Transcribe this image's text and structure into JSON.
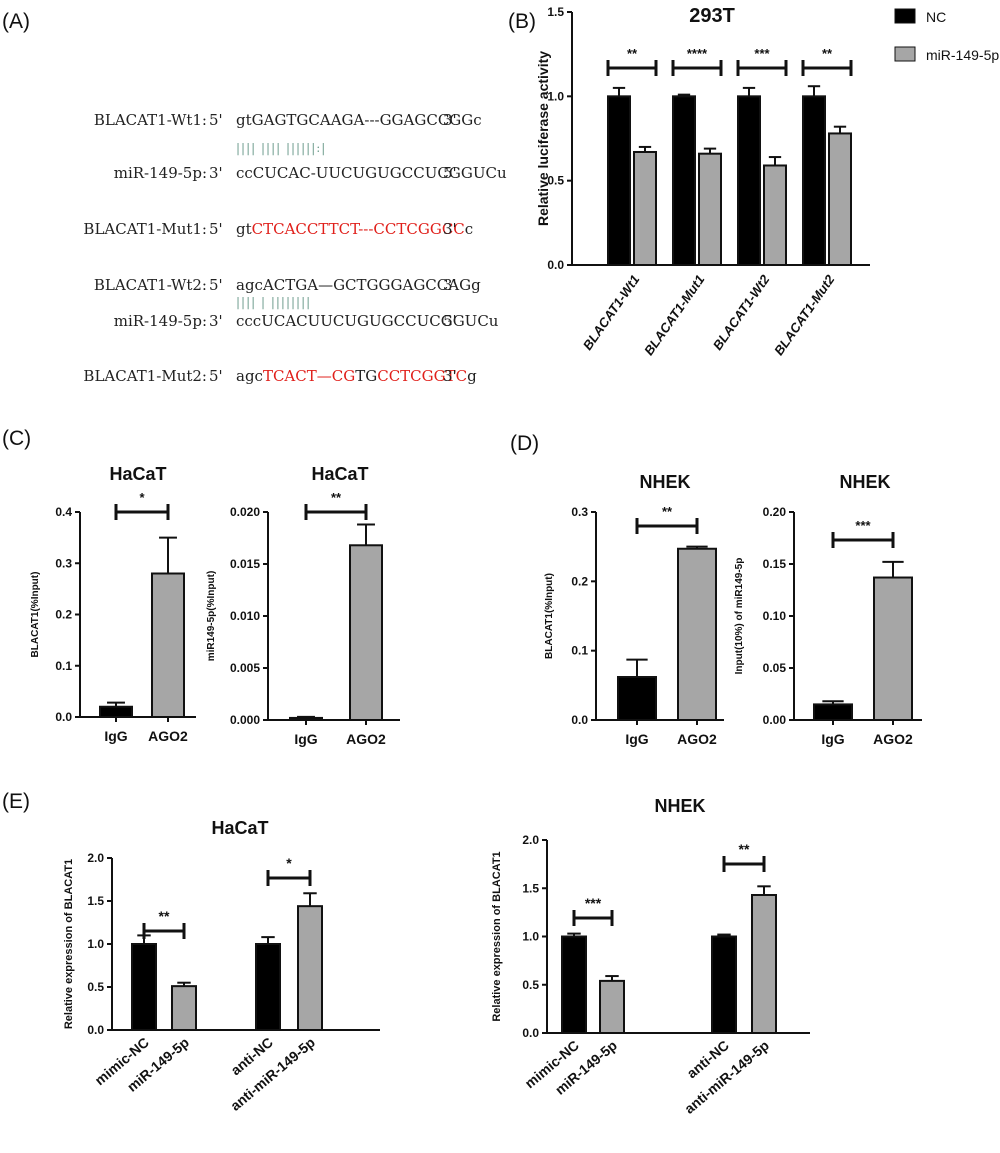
{
  "panel_labels": {
    "A": "(A)",
    "B": "(B)",
    "C": "(C)",
    "D": "(D)",
    "E": "(E)"
  },
  "sequences": [
    {
      "name": "BLACAT1-Wt1:",
      "p5": "5'",
      "segments": [
        {
          "t": "gtGAGTGCAAGA---GGAGCCGGc",
          "c": "#222222"
        }
      ],
      "p3": "3'"
    },
    {
      "name": "",
      "pairing": "|||| ||||  ||||||:|"
    },
    {
      "name": "miR-149-5p:",
      "p5": "3'",
      "segments": [
        {
          "t": "ccCUCAC-UUCUGUGCCUCGGUCu",
          "c": "#222222"
        }
      ],
      "p3": "5'"
    },
    {
      "name": "BLACAT1-Mut1:",
      "p5": "5'",
      "segments": [
        {
          "t": "gt",
          "c": "#222222"
        },
        {
          "t": "CTCACCTTCT---CCTCGGCC",
          "c": "#e0201b"
        },
        {
          "t": "c",
          "c": "#222222"
        }
      ],
      "p3": "3'"
    },
    {
      "name": "BLACAT1-Wt2:",
      "p5": "5'",
      "segments": [
        {
          "t": "agcACTGA—GCTGGGAGCCAGg",
          "c": "#222222"
        }
      ],
      "p3": "3'"
    },
    {
      "name": "",
      "pairing": "||||  |  ||||||||"
    },
    {
      "name": "miR-149-5p:",
      "p5": "3'",
      "segments": [
        {
          "t": "cccUCACUUCUGUGCCUCGGUCu",
          "c": "#222222"
        }
      ],
      "p3": "5'"
    },
    {
      "name": "BLACAT1-Mut2:",
      "p5": "5'",
      "segments": [
        {
          "t": "agc",
          "c": "#222222"
        },
        {
          "t": "TCACT—CG",
          "c": "#e0201b"
        },
        {
          "t": "TG",
          "c": "#222222"
        },
        {
          "t": "CCTCGGTC",
          "c": "#e0201b"
        },
        {
          "t": "g",
          "c": "#222222"
        }
      ],
      "p3": "3'"
    }
  ],
  "colors": {
    "nc": "#000000",
    "treat": "#a6a6a6",
    "mutation": "#e0201b"
  },
  "chart_data": [
    {
      "id": "B",
      "type": "bar",
      "title": "293T",
      "ylabel": "Relative luciferase activity",
      "ylim": [
        0,
        1.5
      ],
      "yticks": [
        "0.0",
        "0.5",
        "1.0",
        "1.5"
      ],
      "categories": [
        "BLACAT1-Wt1",
        "BLACAT1-Mut1",
        "BLACAT1-Wt2",
        "BLACAT1-Mut2"
      ],
      "series": [
        {
          "name": "NC",
          "values": [
            1.0,
            1.0,
            1.0,
            1.0
          ],
          "errors": [
            0.05,
            0.01,
            0.05,
            0.06
          ]
        },
        {
          "name": "miR-149-5p",
          "values": [
            0.67,
            0.66,
            0.59,
            0.78
          ],
          "errors": [
            0.03,
            0.03,
            0.05,
            0.04
          ]
        }
      ],
      "significance": [
        "**",
        "****",
        "***",
        "**"
      ],
      "legend": "right"
    },
    {
      "id": "C1",
      "type": "bar",
      "title": "HaCaT",
      "ylabel": "BLACAT1(%Input)",
      "ylim": [
        0,
        0.4
      ],
      "yticks": [
        "0.0",
        "0.1",
        "0.2",
        "0.3",
        "0.4"
      ],
      "categories": [
        "IgG",
        "AGO2"
      ],
      "values": [
        0.02,
        0.28
      ],
      "errors": [
        0.008,
        0.07
      ],
      "significance": "*"
    },
    {
      "id": "C2",
      "type": "bar",
      "title": "HaCaT",
      "ylabel": "miR149-5p(%Input)",
      "ylim": [
        0,
        0.02
      ],
      "yticks": [
        "0.000",
        "0.005",
        "0.010",
        "0.015",
        "0.020"
      ],
      "categories": [
        "IgG",
        "AGO2"
      ],
      "values": [
        0.0002,
        0.0168
      ],
      "errors": [
        0.0001,
        0.002
      ],
      "significance": "**"
    },
    {
      "id": "D1",
      "type": "bar",
      "title": "NHEK",
      "ylabel": "BLACAT1(%Input)",
      "ylim": [
        0,
        0.3
      ],
      "yticks": [
        "0.0",
        "0.1",
        "0.2",
        "0.3"
      ],
      "categories": [
        "IgG",
        "AGO2"
      ],
      "values": [
        0.062,
        0.247
      ],
      "errors": [
        0.025,
        0.003
      ],
      "significance": "**"
    },
    {
      "id": "D2",
      "type": "bar",
      "title": "NHEK",
      "ylabel": "Input(10%) of miR149-5p",
      "ylim": [
        0,
        0.2
      ],
      "yticks": [
        "0.00",
        "0.05",
        "0.10",
        "0.15",
        "0.20"
      ],
      "categories": [
        "IgG",
        "AGO2"
      ],
      "values": [
        0.015,
        0.137
      ],
      "errors": [
        0.003,
        0.015
      ],
      "significance": "***"
    },
    {
      "id": "E1",
      "type": "bar",
      "title": "HaCaT",
      "ylabel": "Relative expression of BLACAT1",
      "ylim": [
        0,
        2.0
      ],
      "yticks": [
        "0.0",
        "0.5",
        "1.0",
        "1.5",
        "2.0"
      ],
      "categories": [
        "mimic-NC",
        "miR-149-5p",
        "anti-NC",
        "anti-miR-149-5p"
      ],
      "values": [
        1.0,
        0.51,
        1.0,
        1.44
      ],
      "errors": [
        0.1,
        0.04,
        0.08,
        0.15
      ],
      "significance": [
        "**",
        "*"
      ]
    },
    {
      "id": "E2",
      "type": "bar",
      "title": "NHEK",
      "ylabel": "Relative expression of BLACAT1",
      "ylim": [
        0,
        2.0
      ],
      "yticks": [
        "0.0",
        "0.5",
        "1.0",
        "1.5",
        "2.0"
      ],
      "categories": [
        "mimic-NC",
        "miR-149-5p",
        "anti-NC",
        "anti-miR-149-5p"
      ],
      "values": [
        1.0,
        0.54,
        1.0,
        1.43
      ],
      "errors": [
        0.03,
        0.05,
        0.02,
        0.09
      ],
      "significance": [
        "***",
        "**"
      ]
    }
  ]
}
